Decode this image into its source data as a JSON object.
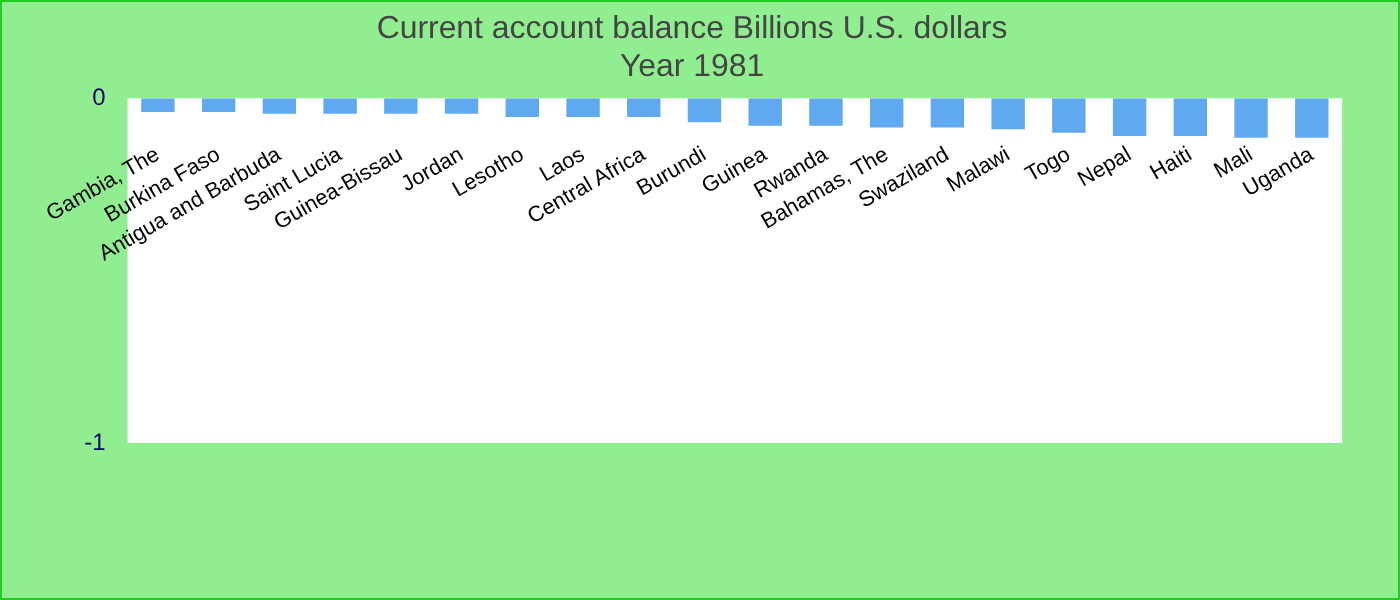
{
  "chart_data": {
    "type": "bar",
    "title": "Current account balance Billions U.S. dollars",
    "subtitle": "Year 1981",
    "categories": [
      "Gambia, The",
      "Burkina Faso",
      "Antigua and Barbuda",
      "Saint Lucia",
      "Guinea-Bissau",
      "Jordan",
      "Lesotho",
      "Laos",
      "Central Africa",
      "Burundi",
      "Guinea",
      "Rwanda",
      "Bahamas, The",
      "Swaziland",
      "Malawi",
      "Togo",
      "Nepal",
      "Haiti",
      "Mali",
      "Uganda"
    ],
    "values": [
      -0.04,
      -0.04,
      -0.045,
      -0.045,
      -0.045,
      -0.045,
      -0.055,
      -0.055,
      -0.055,
      -0.07,
      -0.08,
      -0.08,
      -0.085,
      -0.085,
      -0.09,
      -0.1,
      -0.11,
      -0.11,
      -0.115,
      -0.115
    ],
    "color": "#60a8f0",
    "ylim": [
      -1,
      0
    ],
    "yticks": [
      -1,
      0
    ],
    "grid": false,
    "legend": false
  }
}
